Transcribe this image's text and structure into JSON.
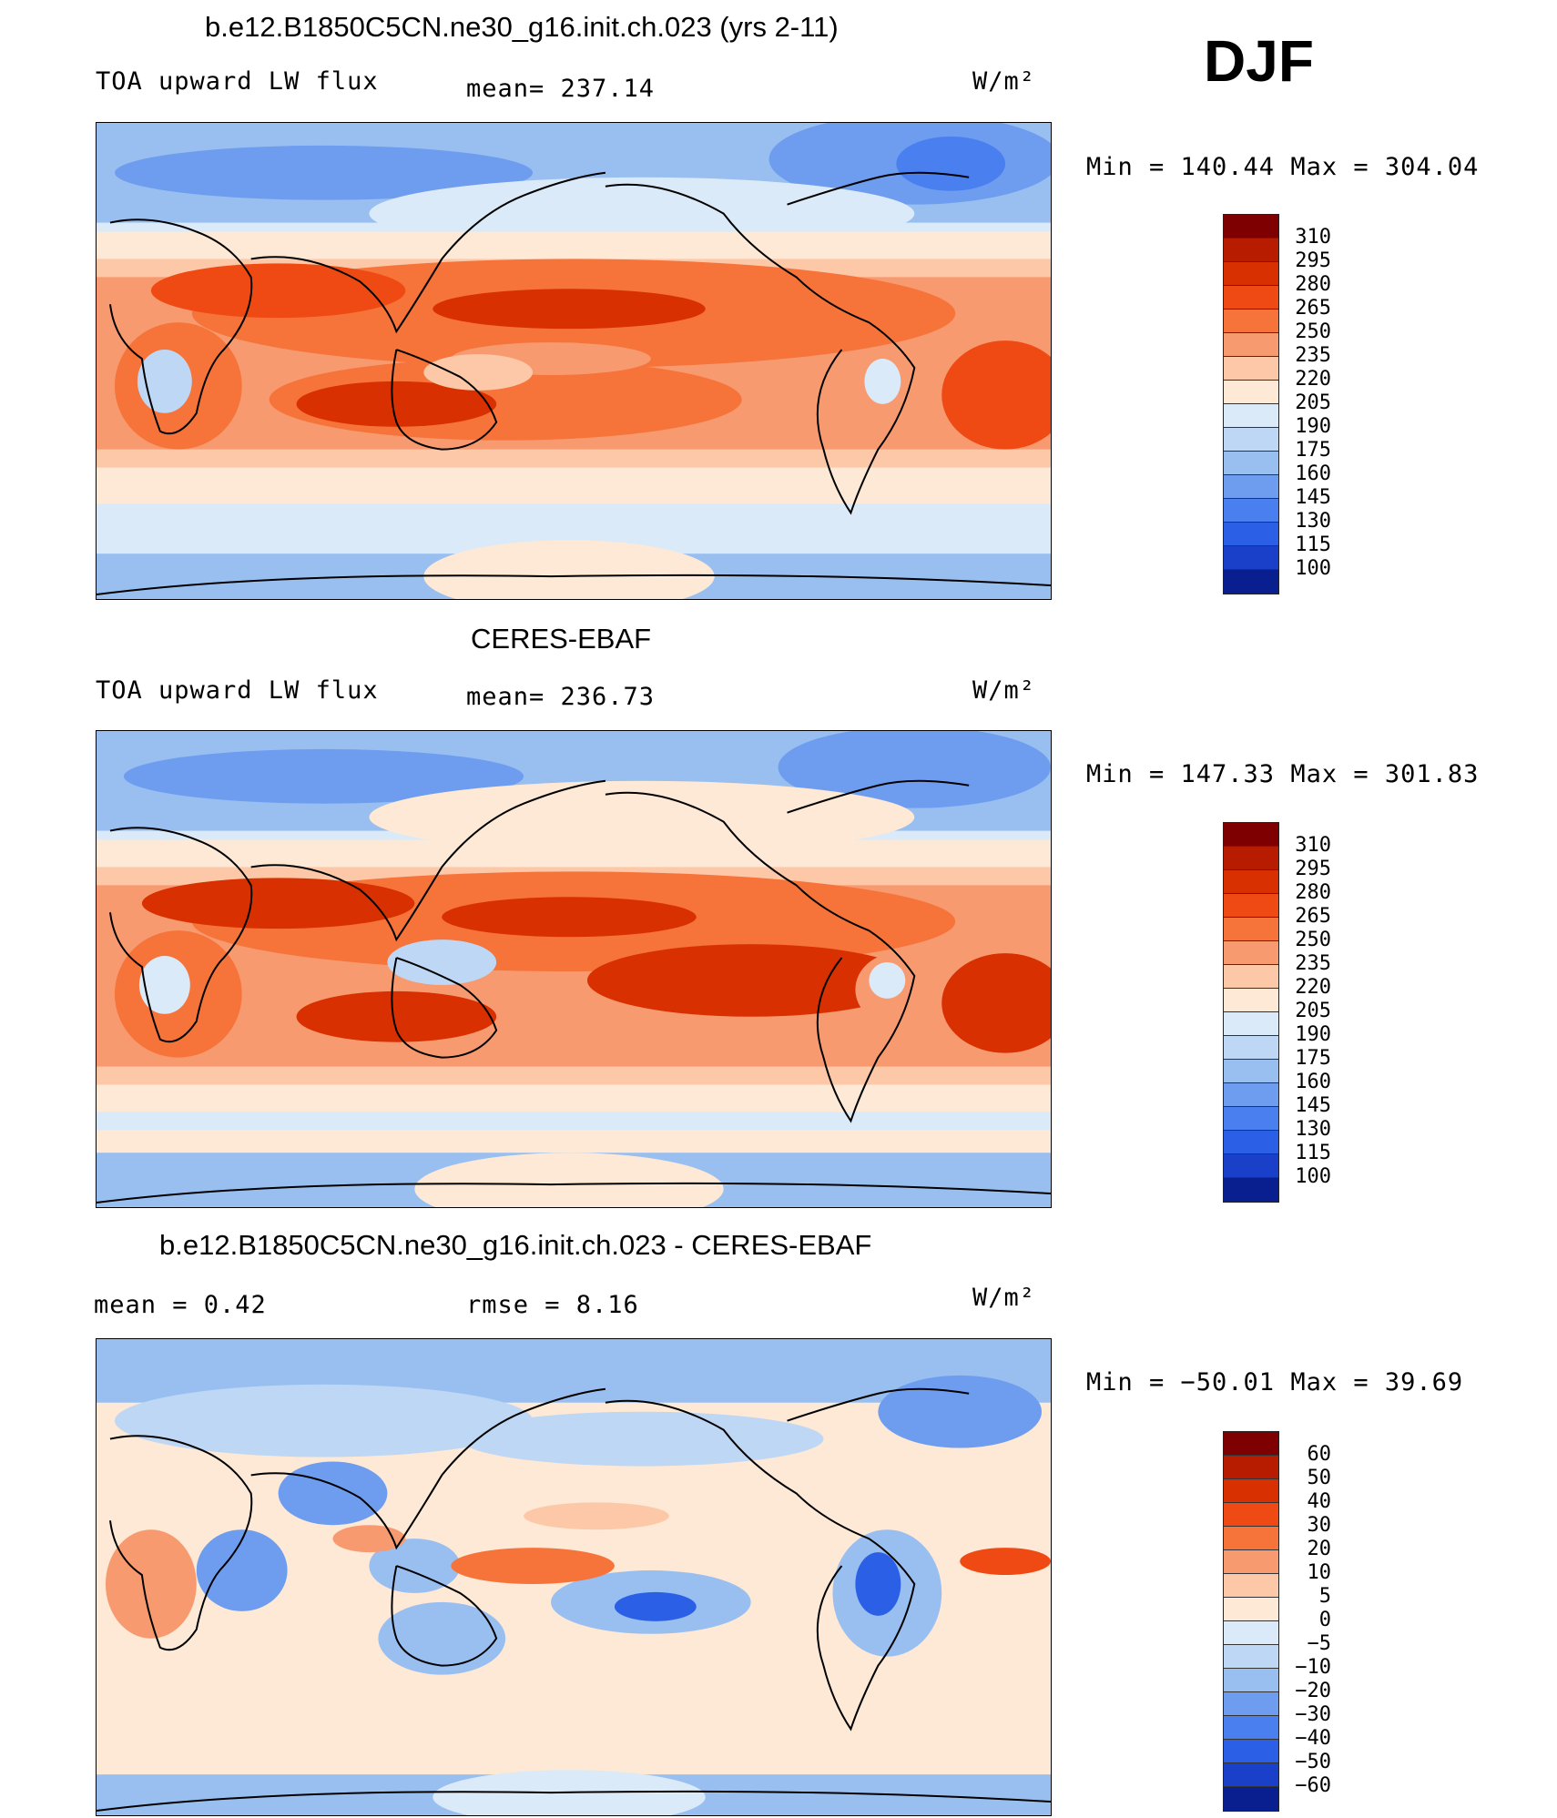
{
  "season": "DJF",
  "panels": [
    {
      "title": "b.e12.B1850C5CN.ne30_g16.init.ch.023 (yrs 2-11)",
      "left_label": "TOA upward LW flux",
      "stat": "mean= 237.14",
      "units": "W/m²",
      "minmax": "Min  =  140.44  Max  =  304.04"
    },
    {
      "title": "CERES-EBAF",
      "left_label": "TOA upward LW flux",
      "stat": "mean= 236.73",
      "units": "W/m²",
      "minmax": "Min  =  147.33  Max  =  301.83"
    },
    {
      "title": "b.e12.B1850C5CN.ne30_g16.init.ch.023 - CERES-EBAF",
      "left_label": "mean =    0.42",
      "stat": "rmse =    8.16",
      "units": "W/m²",
      "minmax": "Min  = −50.01  Max  =    39.69"
    }
  ],
  "colorbars": {
    "abs": {
      "labels": [
        "310",
        "295",
        "280",
        "265",
        "250",
        "235",
        "220",
        "205",
        "190",
        "175",
        "160",
        "145",
        "130",
        "115",
        "100"
      ],
      "colors": [
        "#7f0000",
        "#b71c00",
        "#d83000",
        "#f04a14",
        "#f6733a",
        "#f89a70",
        "#fcc8a8",
        "#fde9d6",
        "#dbeaf8",
        "#bdd7f4",
        "#98bff0",
        "#6e9df0",
        "#4a7ff0",
        "#2b5fe6",
        "#1a3fc8",
        "#0a1f8f"
      ]
    },
    "diff": {
      "labels": [
        "60",
        "50",
        "40",
        "30",
        "20",
        "10",
        "5",
        "0",
        "−5",
        "−10",
        "−20",
        "−30",
        "−40",
        "−50",
        "−60"
      ],
      "colors": [
        "#7f0000",
        "#b71c00",
        "#d83000",
        "#f04a14",
        "#f6733a",
        "#f89a70",
        "#fcc8a8",
        "#fde9d6",
        "#dbeaf8",
        "#bdd7f4",
        "#98bff0",
        "#6e9df0",
        "#4a7ff0",
        "#2b5fe6",
        "#1a3fc8",
        "#0a1f8f"
      ]
    }
  }
}
